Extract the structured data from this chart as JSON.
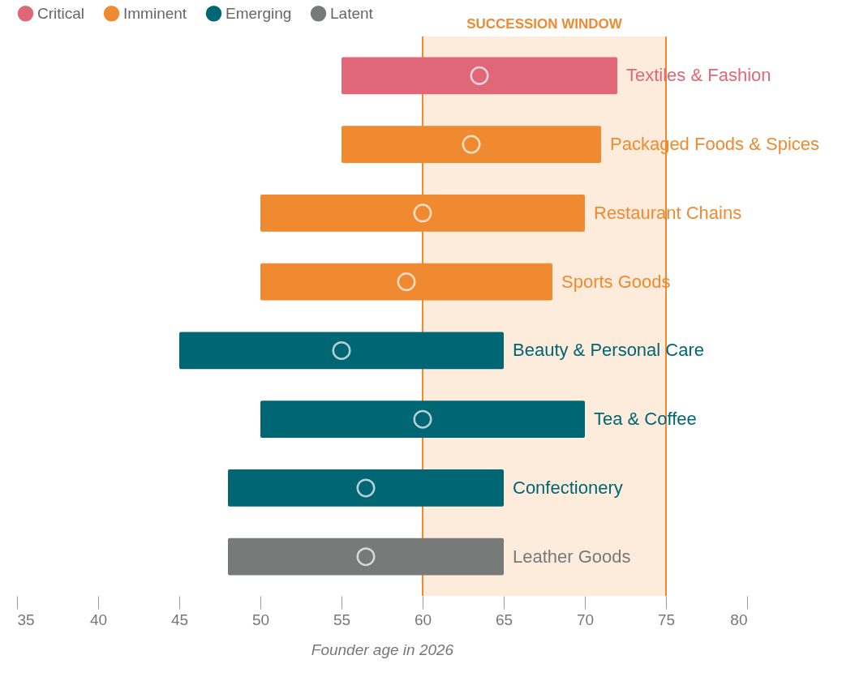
{
  "chart_data": {
    "type": "bar",
    "orientation": "horizontal",
    "xlabel": "Founder age in 2026",
    "categories": [
      "Textiles & Fashion",
      "Packaged Foods & Spices",
      "Restaurant Chains",
      "Sports Goods",
      "Beauty & Personal Care",
      "Tea & Coffee",
      "Confectionery",
      "Leather Goods"
    ],
    "series": [
      {
        "name": "Critical",
        "color": "#e06777",
        "values": [
          17,
          null,
          null,
          null,
          null,
          null,
          null,
          null
        ],
        "base": [
          55,
          null,
          null,
          null,
          null,
          null,
          null,
          null
        ]
      },
      {
        "name": "Imminent",
        "color": "#ef8a30",
        "values": [
          null,
          16,
          20,
          18,
          null,
          null,
          null,
          null
        ],
        "base": [
          null,
          55,
          50,
          50,
          null,
          null,
          null,
          null
        ]
      },
      {
        "name": "Emerging",
        "color": "#006674",
        "values": [
          null,
          null,
          null,
          null,
          20,
          20,
          17,
          null
        ],
        "base": [
          null,
          null,
          null,
          null,
          45,
          50,
          48,
          null
        ]
      },
      {
        "name": "Latent",
        "color": "#787a7a",
        "values": [
          null,
          null,
          null,
          null,
          null,
          null,
          null,
          17
        ],
        "base": [
          null,
          null,
          null,
          null,
          null,
          null,
          null,
          48
        ]
      },
      {
        "type": "scatter",
        "color": "#ffffff",
        "values": [
          63.5,
          63,
          60,
          59,
          55,
          60,
          56.5,
          56.5
        ]
      }
    ],
    "bands": [
      {
        "axis": "x",
        "from": 60,
        "to": 75,
        "label": "SUCCESSION WINDOW",
        "color": "#fdebdc"
      }
    ],
    "ref_lines": [
      {
        "axis": "x",
        "value": 60,
        "color": "#ef8a30"
      },
      {
        "axis": "x",
        "value": 75,
        "color": "#ef8a30"
      }
    ],
    "xlim": [
      35,
      80
    ],
    "xticks": [
      35,
      40,
      45,
      50,
      55,
      60,
      65,
      70,
      75,
      80
    ],
    "legend": "top",
    "marker": "circle",
    "tick_labels": "x"
  }
}
